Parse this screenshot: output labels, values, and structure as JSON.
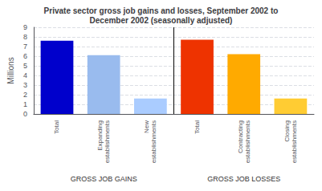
{
  "chart_data": {
    "type": "bar",
    "title": "Private sector gross job gains and losses, September 2002 to\nDecember 2002 (seasonally adjusted)",
    "categories": [
      "Total",
      "Expanding\nestablishments",
      "New\nestablishments",
      "Total",
      "Contracting\nestablishments",
      "Closing\nestablishments"
    ],
    "values": [
      7.6,
      6.1,
      1.6,
      7.7,
      6.2,
      1.6
    ],
    "colors": [
      "#0000CC",
      "#99BBEE",
      "#AACCFF",
      "#EE3300",
      "#FFAA00",
      "#FFCC33"
    ],
    "category_groups": [
      "GROSS JOB GAINS",
      "GROSS JOB GAINS",
      "GROSS JOB GAINS",
      "GROSS JOB LOSSES",
      "GROSS JOB LOSSES",
      "GROSS JOB LOSSES"
    ],
    "ylabel": "Millions",
    "ylim": [
      0,
      9
    ],
    "yticks": [
      0,
      1,
      2,
      3,
      4,
      5,
      6,
      7,
      8,
      9
    ],
    "grid": true
  }
}
